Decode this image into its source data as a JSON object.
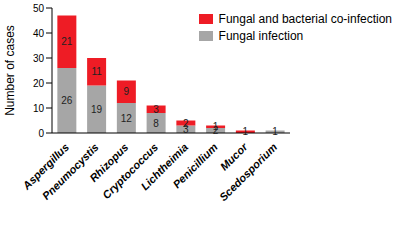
{
  "chart_data": {
    "type": "bar",
    "stacked": true,
    "data_labels": true,
    "legend": "upper right",
    "y_label": "Number of cases",
    "categories": [
      "Aspergillus",
      "Pneumocystis",
      "Rhizopus",
      "Cryptococcus",
      "Lichtheimia",
      "Penicillium",
      "Mucor",
      "Scedosporium"
    ],
    "series": [
      {
        "name": "Fungal infection",
        "color": "#a6a6a6",
        "values": [
          26,
          19,
          12,
          8,
          3,
          2,
          0,
          1
        ]
      },
      {
        "name": "Fungal and bacterial co-infection",
        "color": "#ee1c25",
        "values": [
          21,
          11,
          9,
          3,
          2,
          1,
          1,
          0
        ]
      }
    ],
    "ylim": [
      0,
      50
    ],
    "yticks": [
      0,
      10,
      20,
      30,
      40,
      50
    ]
  }
}
